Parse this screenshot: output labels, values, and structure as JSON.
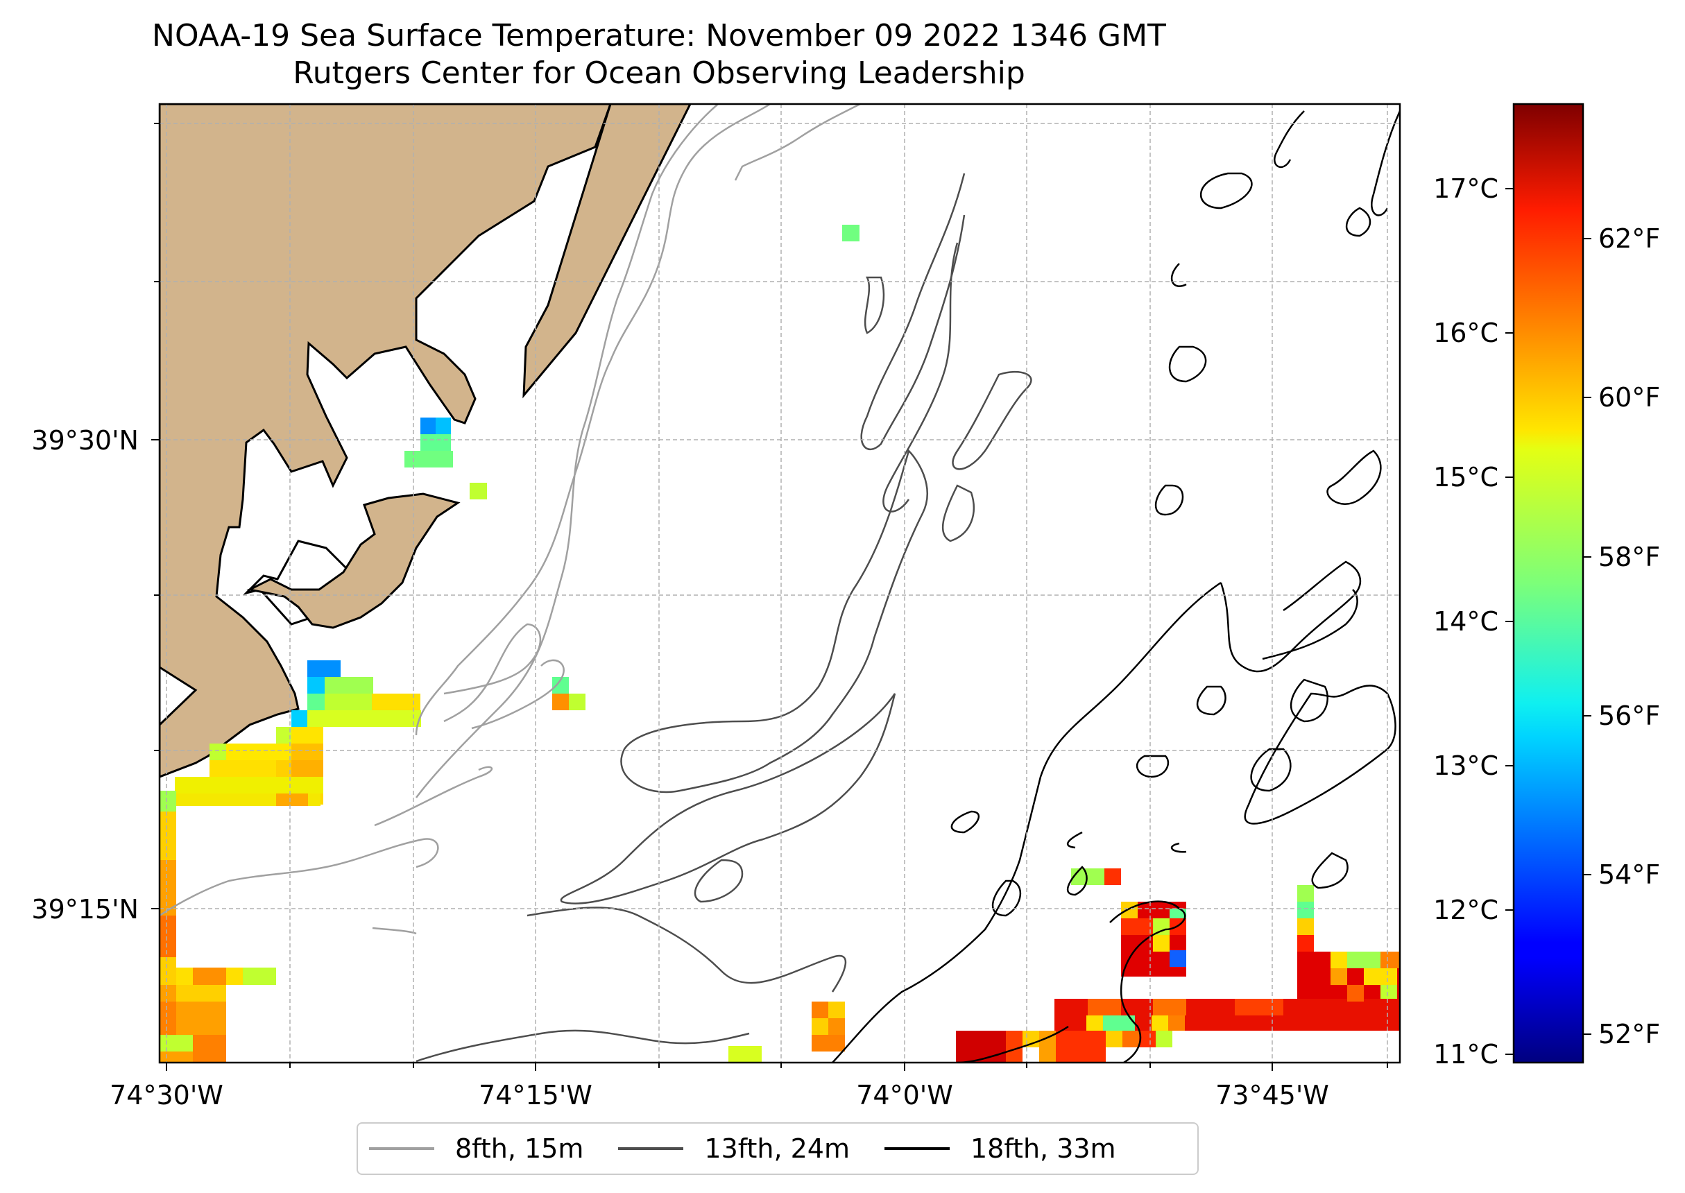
{
  "title": {
    "line1": "NOAA-19 Sea Surface Temperature: November 09 2022 1346 GMT",
    "line2": "Rutgers Center for Ocean Observing Leadership"
  },
  "axes": {
    "x_ticks": [
      "74°30'W",
      "74°15'W",
      "74°0'W",
      "73°45'W"
    ],
    "y_ticks": [
      "39°30'N",
      "39°15'N"
    ]
  },
  "colorbar": {
    "celsius_ticks": [
      "17°C",
      "16°C",
      "15°C",
      "14°C",
      "13°C",
      "12°C",
      "11°C"
    ],
    "fahrenheit_ticks": [
      "62°F",
      "60°F",
      "58°F",
      "56°F",
      "54°F",
      "52°F"
    ],
    "celsius_range": [
      10.9,
      17.6
    ],
    "colormap": "jet"
  },
  "legend": {
    "items": [
      {
        "label": "8fth, 15m",
        "color": "#a0a0a0"
      },
      {
        "label": "13fth, 24m",
        "color": "#4d4d4d"
      },
      {
        "label": "18fth, 33m",
        "color": "#000000"
      }
    ]
  },
  "colors": {
    "land": "#d2b48c",
    "grid": "#b0b0b0"
  }
}
